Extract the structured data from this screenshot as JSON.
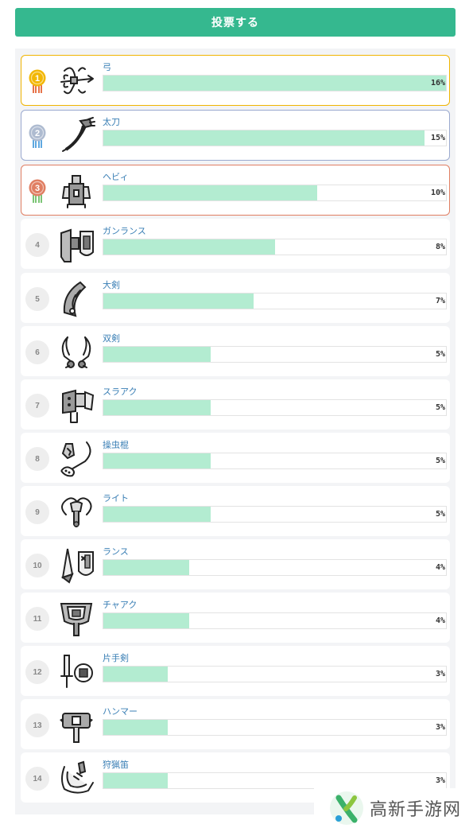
{
  "vote_button": "投票する",
  "colors": {
    "accent": "#35b88f",
    "bar_fill": "#b3ecd1",
    "name_text": "#3a7fb5",
    "gold": "#f0b400",
    "silver": "#9aa9cf",
    "bronze": "#e07e62"
  },
  "rankings": [
    {
      "rank": "1",
      "name": "弓",
      "percent": 16,
      "percent_label": "16%",
      "icon": "bow-icon",
      "medal": "gold"
    },
    {
      "rank": "2",
      "name": "太刀",
      "percent": 15,
      "percent_label": "15%",
      "icon": "long-sword-icon",
      "medal": "silver"
    },
    {
      "rank": "3",
      "name": "ヘビィ",
      "percent": 10,
      "percent_label": "10%",
      "icon": "heavy-bowgun-icon",
      "medal": "bronze"
    },
    {
      "rank": "4",
      "name": "ガンランス",
      "percent": 8,
      "percent_label": "8%",
      "icon": "gunlance-icon"
    },
    {
      "rank": "5",
      "name": "大剣",
      "percent": 7,
      "percent_label": "7%",
      "icon": "great-sword-icon"
    },
    {
      "rank": "6",
      "name": "双剣",
      "percent": 5,
      "percent_label": "5%",
      "icon": "dual-blades-icon"
    },
    {
      "rank": "7",
      "name": "スラアク",
      "percent": 5,
      "percent_label": "5%",
      "icon": "switch-axe-icon"
    },
    {
      "rank": "8",
      "name": "操虫棍",
      "percent": 5,
      "percent_label": "5%",
      "icon": "insect-glaive-icon"
    },
    {
      "rank": "9",
      "name": "ライト",
      "percent": 5,
      "percent_label": "5%",
      "icon": "light-bowgun-icon"
    },
    {
      "rank": "10",
      "name": "ランス",
      "percent": 4,
      "percent_label": "4%",
      "icon": "lance-icon"
    },
    {
      "rank": "11",
      "name": "チャアク",
      "percent": 4,
      "percent_label": "4%",
      "icon": "charge-blade-icon"
    },
    {
      "rank": "12",
      "name": "片手剣",
      "percent": 3,
      "percent_label": "3%",
      "icon": "sword-and-shield-icon"
    },
    {
      "rank": "13",
      "name": "ハンマー",
      "percent": 3,
      "percent_label": "3%",
      "icon": "hammer-icon"
    },
    {
      "rank": "14",
      "name": "狩猟笛",
      "percent": 3,
      "percent_label": "3%",
      "icon": "hunting-horn-icon"
    }
  ],
  "watermark": "高新手游网"
}
